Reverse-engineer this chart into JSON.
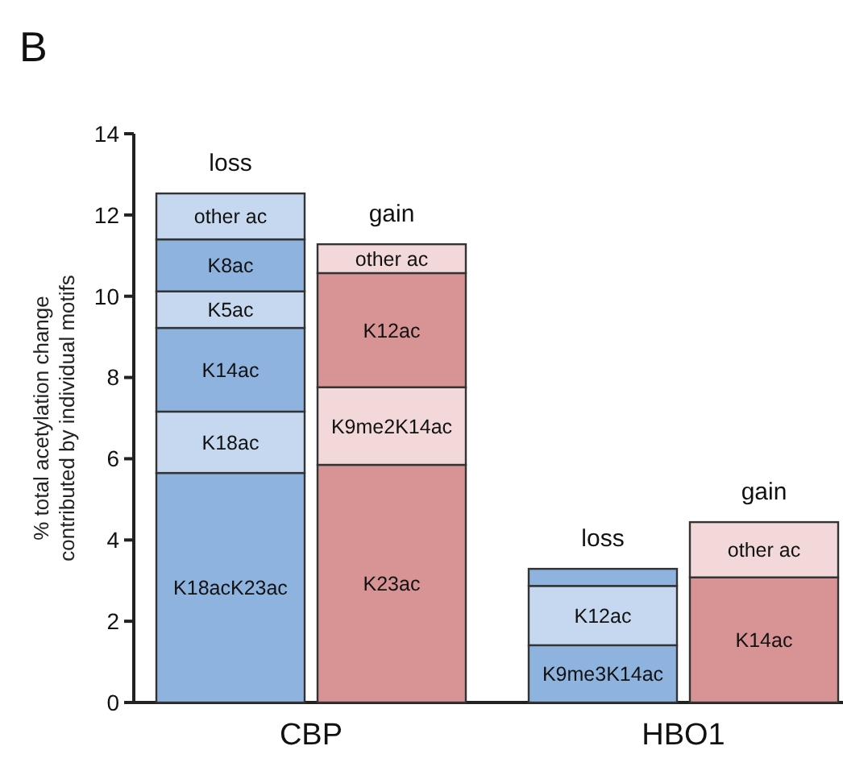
{
  "chart_data": {
    "type": "bar",
    "title": "B",
    "ylabel": "% total acetylation change\ncontributed by individual motifs",
    "stacked": true,
    "categories": [
      "loss",
      "gain",
      "loss",
      "gain"
    ],
    "annotations": [
      "CBP",
      "HBO1"
    ],
    "ylim": [
      0,
      14
    ],
    "yticks": [
      0,
      2,
      4,
      6,
      8,
      10,
      12,
      14
    ],
    "series": [
      {
        "name": "K18acK23ac",
        "color": "#8fb3df",
        "values": [
          5.65,
          null,
          null,
          null
        ]
      },
      {
        "name": "K18ac",
        "color": "#c5d8ef",
        "values": [
          1.51,
          null,
          null,
          null
        ]
      },
      {
        "name": "K14ac",
        "color": "#8fb3df",
        "values": [
          2.06,
          null,
          null,
          null
        ]
      },
      {
        "name": "K5ac",
        "color": "#c5d8ef",
        "values": [
          0.9,
          null,
          null,
          null
        ]
      },
      {
        "name": "K8ac",
        "color": "#8fb3df",
        "values": [
          1.28,
          null,
          null,
          null
        ]
      },
      {
        "name": "other ac",
        "color": "#c5d8ef",
        "values": [
          1.13,
          null,
          null,
          null
        ]
      },
      {
        "name": "K23ac",
        "color": "#d89494",
        "values": [
          null,
          5.85,
          null,
          null
        ]
      },
      {
        "name": "K9me2K14ac",
        "color": "#f2d8d9",
        "values": [
          null,
          1.91,
          null,
          null
        ]
      },
      {
        "name": "K12ac",
        "color": "#d89494",
        "values": [
          null,
          2.81,
          null,
          null
        ]
      },
      {
        "name": "other ac",
        "color": "#f2d8d9",
        "values": [
          null,
          0.71,
          null,
          null
        ]
      },
      {
        "name": "K9me3K14ac",
        "color": "#8fb3df",
        "values": [
          null,
          null,
          1.41,
          null
        ]
      },
      {
        "name": "K12ac",
        "color": "#c5d8ef",
        "values": [
          null,
          null,
          1.46,
          null
        ]
      },
      {
        "color": "#8fb3df",
        "values": [
          null,
          null,
          0.42,
          null
        ]
      },
      {
        "name": "K14ac",
        "color": "#d89494",
        "values": [
          null,
          null,
          null,
          3.08
        ]
      },
      {
        "name": "other ac",
        "color": "#f2d8d9",
        "values": [
          null,
          null,
          null,
          1.36
        ]
      }
    ]
  }
}
